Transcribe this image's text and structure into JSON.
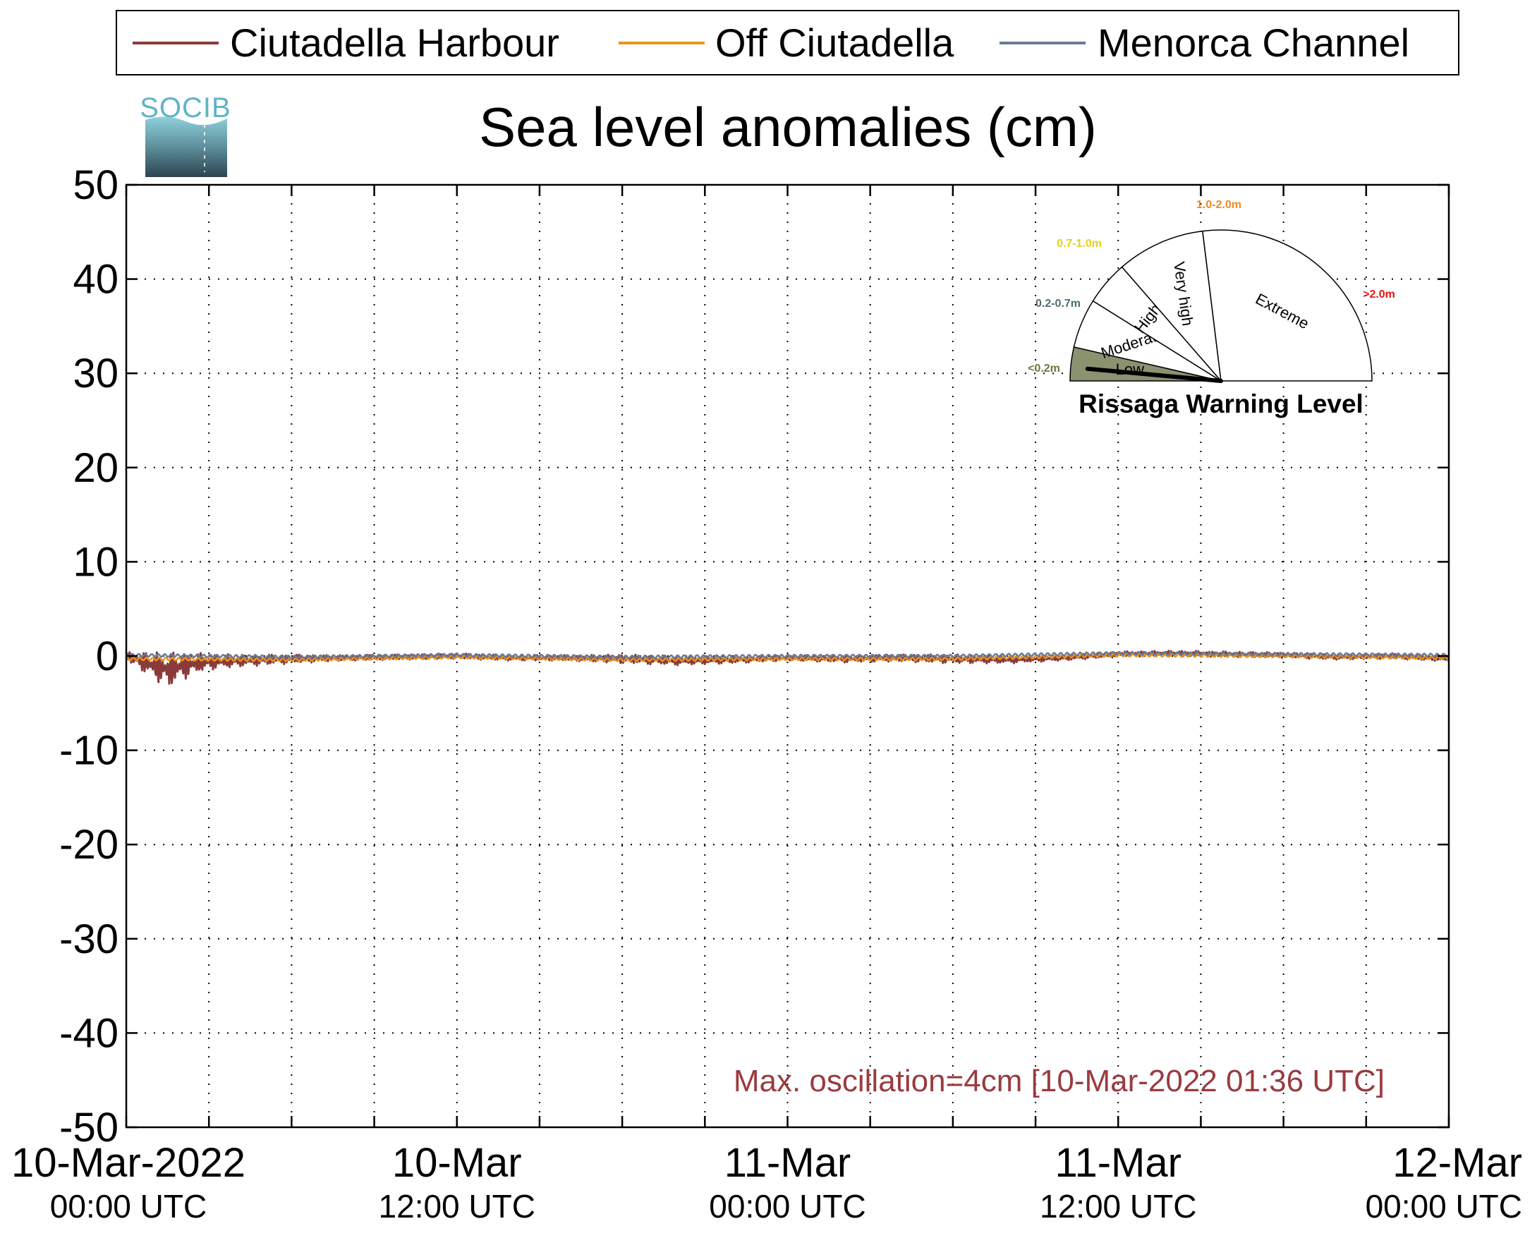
{
  "chart_data": {
    "type": "line",
    "title": "Sea level anomalies (cm)",
    "xlabel": "",
    "ylabel": "",
    "ylim": [
      -50,
      50
    ],
    "yticks": [
      50,
      40,
      30,
      20,
      10,
      0,
      -10,
      -20,
      -30,
      -40,
      -50
    ],
    "xlim": [
      "2022-03-10T00:00",
      "2022-03-12T00:00"
    ],
    "xticks": [
      {
        "x": "2022-03-10T00:00",
        "line1": "10-Mar-2022",
        "line2": "00:00 UTC"
      },
      {
        "x": "2022-03-10T12:00",
        "line1": "10-Mar",
        "line2": "12:00 UTC"
      },
      {
        "x": "2022-03-11T00:00",
        "line1": "11-Mar",
        "line2": "00:00 UTC"
      },
      {
        "x": "2022-03-11T12:00",
        "line1": "11-Mar",
        "line2": "12:00 UTC"
      },
      {
        "x": "2022-03-12T00:00",
        "line1": "12-Mar",
        "line2": "00:00 UTC"
      }
    ],
    "grid": true,
    "legend_position": "top",
    "annotation": "Max. oscillation=4cm [10-Mar-2022 01:36 UTC]",
    "annotation_color": "#9a3b3f",
    "series": [
      {
        "name": "Ciutadella Harbour",
        "color": "#8b3a3a",
        "x": [
          "2022-03-10T00:00",
          "2022-03-10T00:30",
          "2022-03-10T01:00",
          "2022-03-10T01:36",
          "2022-03-10T02:00",
          "2022-03-10T02:30",
          "2022-03-10T03:00",
          "2022-03-10T04:00",
          "2022-03-10T05:00",
          "2022-03-10T06:00",
          "2022-03-10T08:00",
          "2022-03-10T10:00",
          "2022-03-10T12:00",
          "2022-03-10T14:00",
          "2022-03-10T16:00",
          "2022-03-10T18:00",
          "2022-03-10T20:00",
          "2022-03-10T22:00",
          "2022-03-11T00:00",
          "2022-03-11T02:00",
          "2022-03-11T04:00",
          "2022-03-11T06:00",
          "2022-03-11T08:00",
          "2022-03-11T10:00",
          "2022-03-11T12:00",
          "2022-03-11T14:00",
          "2022-03-11T16:00",
          "2022-03-11T18:00",
          "2022-03-11T20:00",
          "2022-03-11T22:00",
          "2022-03-12T00:00"
        ],
        "values": [
          0.0,
          -0.5,
          -1.0,
          -1.5,
          -1.0,
          -0.8,
          -0.6,
          -0.5,
          -0.4,
          -0.3,
          -0.2,
          -0.1,
          0.0,
          -0.2,
          -0.2,
          -0.3,
          -0.5,
          -0.4,
          -0.2,
          -0.3,
          -0.2,
          -0.3,
          -0.4,
          -0.2,
          0.2,
          0.3,
          0.2,
          0.1,
          -0.1,
          0.0,
          -0.3
        ],
        "amplitude": [
          0.4,
          1.0,
          1.6,
          2.0,
          1.6,
          1.2,
          0.9,
          0.7,
          0.6,
          0.5,
          0.3,
          0.3,
          0.3,
          0.3,
          0.3,
          0.5,
          0.5,
          0.4,
          0.3,
          0.4,
          0.4,
          0.5,
          0.4,
          0.3,
          0.3,
          0.3,
          0.3,
          0.3,
          0.3,
          0.3,
          0.3
        ]
      },
      {
        "name": "Off Ciutadella",
        "color": "#e8961e",
        "x": [
          "2022-03-10T00:00",
          "2022-03-10T06:00",
          "2022-03-10T12:00",
          "2022-03-10T18:00",
          "2022-03-11T00:00",
          "2022-03-11T06:00",
          "2022-03-11T12:00",
          "2022-03-11T18:00",
          "2022-03-12T00:00"
        ],
        "values": [
          -0.3,
          -0.4,
          -0.1,
          -0.4,
          -0.3,
          -0.3,
          0.1,
          0.0,
          -0.2
        ]
      },
      {
        "name": "Menorca Channel",
        "color": "#6b7a99",
        "x": [
          "2022-03-10T00:00",
          "2022-03-10T06:00",
          "2022-03-10T12:00",
          "2022-03-10T18:00",
          "2022-03-11T00:00",
          "2022-03-11T06:00",
          "2022-03-11T12:00",
          "2022-03-11T18:00",
          "2022-03-12T00:00"
        ],
        "values": [
          0.1,
          -0.1,
          0.1,
          -0.1,
          0.0,
          0.0,
          0.3,
          0.2,
          0.1
        ]
      }
    ]
  },
  "logo": {
    "text": "SOCIB"
  },
  "gauge": {
    "title": "Rissaga Warning Level",
    "current_level": "Low",
    "needle_value_m": 0.08,
    "sectors": [
      {
        "label": "Low",
        "range": "<0.2m",
        "range_color": "#6b7a3a",
        "fill": "#8a9270"
      },
      {
        "label": "Moderate",
        "range": "0.2-0.7m",
        "range_color": "#4f6e73",
        "fill": "#ffffff"
      },
      {
        "label": "High",
        "range": "0.7-1.0m",
        "range_color": "#e3d21c",
        "fill": "#ffffff"
      },
      {
        "label": "Very high",
        "range": "1.0-2.0m",
        "range_color": "#f08a1c",
        "fill": "#ffffff"
      },
      {
        "label": "Extreme",
        "range": ">2.0m",
        "range_color": "#e01818",
        "fill": "#ffffff"
      }
    ]
  }
}
